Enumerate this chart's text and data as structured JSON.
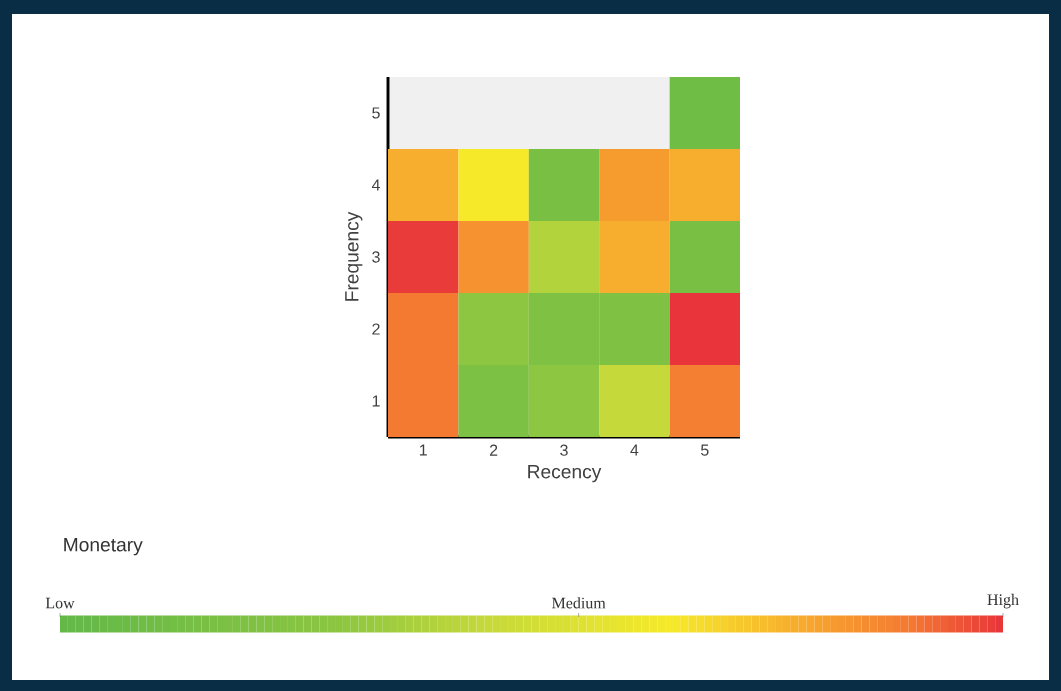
{
  "chart_data": {
    "type": "heatmap",
    "xlabel": "Recency",
    "ylabel": "Frequency",
    "clabel": "Monetary",
    "categories": [
      "1",
      "2",
      "3",
      "4",
      "5"
    ],
    "y_categories": [
      "5",
      "4",
      "3",
      "2",
      "1"
    ],
    "cells": [
      [
        null,
        null,
        null,
        null,
        0.1
      ],
      [
        0.78,
        0.65,
        0.15,
        0.82,
        0.78
      ],
      [
        0.99,
        0.84,
        0.4,
        0.78,
        0.15
      ],
      [
        0.9,
        0.3,
        0.2,
        0.2,
        1
      ],
      [
        0.9,
        0.18,
        0.3,
        0.45,
        0.89
      ]
    ],
    "clim": [
      0,
      1
    ],
    "cticks": [
      {
        "value": 0,
        "label": "Low"
      },
      {
        "value": 0.55,
        "label": "Medium"
      },
      {
        "value": 1,
        "label": "High"
      }
    ]
  }
}
